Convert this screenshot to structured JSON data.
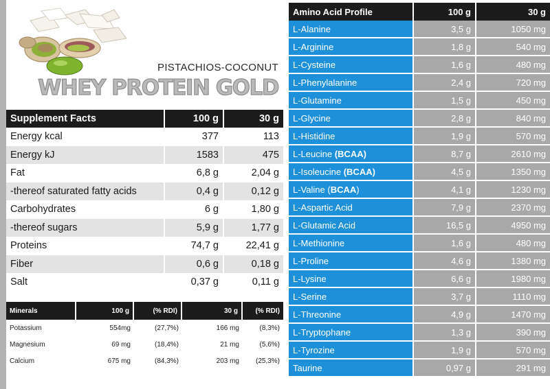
{
  "product": {
    "flavor": "PISTACHIOS-COCONUT",
    "name": "WHEY PROTEIN GOLD"
  },
  "supplement_facts": {
    "headers": [
      "Supplement Facts",
      "100 g",
      "30 g"
    ],
    "rows": [
      {
        "label": "Energy  kcal",
        "per100": "377",
        "per30": "113"
      },
      {
        "label": "Energy  kJ",
        "per100": "1583",
        "per30": "475"
      },
      {
        "label": "Fat",
        "per100": "6,8 g",
        "per30": "2,04 g"
      },
      {
        "label": "-thereof saturated fatty acids",
        "per100": "0,4 g",
        "per30": "0,12 g"
      },
      {
        "label": "Carbohydrates",
        "per100": "6 g",
        "per30": "1,80 g"
      },
      {
        "label": "-thereof sugars",
        "per100": "5,9 g",
        "per30": "1,77 g"
      },
      {
        "label": "Proteins",
        "per100": "74,7 g",
        "per30": "22,41 g"
      },
      {
        "label": "Fiber",
        "per100": "0,6 g",
        "per30": "0,18 g"
      },
      {
        "label": "Salt",
        "per100": "0,37 g",
        "per30": "0,11 g"
      }
    ]
  },
  "minerals": {
    "headers": [
      "Minerals",
      "100 g",
      "(% RDI)",
      "30 g",
      "(% RDI)"
    ],
    "rows": [
      {
        "label": "Potassium",
        "per100": "554mg",
        "rdi100": "(27,7%)",
        "per30": "166 mg",
        "rdi30": "(8,3%)"
      },
      {
        "label": "Magnesium",
        "per100": "69 mg",
        "rdi100": "(18,4%)",
        "per30": "21 mg",
        "rdi30": "(5,6%)"
      },
      {
        "label": "Calcium",
        "per100": "675 mg",
        "rdi100": "(84,3%)",
        "per30": "203 mg",
        "rdi30": "(25,3%)"
      }
    ]
  },
  "amino_acids": {
    "headers": [
      "Amino Acid Profile",
      "100 g",
      "30 g"
    ],
    "rows": [
      {
        "name": "L-Alanine",
        "tag": "",
        "tag_suffix": "",
        "per100": "3,5 g",
        "per30": "1050 mg"
      },
      {
        "name": "L-Arginine",
        "tag": "",
        "tag_suffix": "",
        "per100": "1,8 g",
        "per30": "540 mg"
      },
      {
        "name": "L-Cysteine",
        "tag": "",
        "tag_suffix": "",
        "per100": "1,6 g",
        "per30": "480 mg"
      },
      {
        "name": "L-Phenylalanine",
        "tag": "",
        "tag_suffix": "",
        "per100": "2,4 g",
        "per30": "720 mg"
      },
      {
        "name": "L-Glutamine",
        "tag": "",
        "tag_suffix": "",
        "per100": "1,5 g",
        "per30": "450 mg"
      },
      {
        "name": "L-Glycine",
        "tag": "",
        "tag_suffix": "",
        "per100": "2,8 g",
        "per30": "840 mg"
      },
      {
        "name": "L-Histidine",
        "tag": "",
        "tag_suffix": "",
        "per100": "1,9 g",
        "per30": "570 mg"
      },
      {
        "name": "L-Leucine ",
        "tag": "(BCAA)",
        "tag_suffix": "",
        "per100": "8,7 g",
        "per30": "2610 mg"
      },
      {
        "name": "L-Isoleucine ",
        "tag": "(BCAA)",
        "tag_suffix": "",
        "per100": "4,5 g",
        "per30": "1350 mg"
      },
      {
        "name": "L-Valine (",
        "tag": "BCAA",
        "tag_suffix": ")",
        "per100": "4,1 g",
        "per30": "1230 mg"
      },
      {
        "name": "L-Aspartic Acid",
        "tag": "",
        "tag_suffix": "",
        "per100": "7,9 g",
        "per30": "2370 mg"
      },
      {
        "name": "L-Glutamic Acid",
        "tag": "",
        "tag_suffix": "",
        "per100": "16,5 g",
        "per30": "4950 mg"
      },
      {
        "name": "L-Methionine",
        "tag": "",
        "tag_suffix": "",
        "per100": "1,6 g",
        "per30": "480 mg"
      },
      {
        "name": "L-Proline",
        "tag": "",
        "tag_suffix": "",
        "per100": "4,6 g",
        "per30": "1380 mg"
      },
      {
        "name": "L-Lysine",
        "tag": "",
        "tag_suffix": "",
        "per100": "6,6 g",
        "per30": "1980 mg"
      },
      {
        "name": "L-Serine",
        "tag": "",
        "tag_suffix": "",
        "per100": "3,7 g",
        "per30": "1110 mg"
      },
      {
        "name": "L-Threonine",
        "tag": "",
        "tag_suffix": "",
        "per100": "4,9 g",
        "per30": "1470 mg"
      },
      {
        "name": "L-Tryptophane",
        "tag": "",
        "tag_suffix": "",
        "per100": "1,3 g",
        "per30": "390 mg"
      },
      {
        "name": "L-Tyrozine",
        "tag": "",
        "tag_suffix": "",
        "per100": "1,9 g",
        "per30": "570 mg"
      },
      {
        "name": "Taurine",
        "tag": "",
        "tag_suffix": "",
        "per100": "0,97 g",
        "per30": "291 mg"
      }
    ]
  }
}
